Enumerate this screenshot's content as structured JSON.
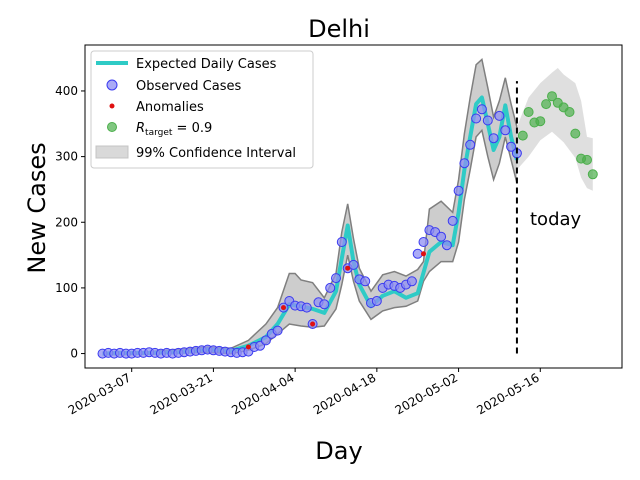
{
  "chart_data": {
    "type": "line",
    "title": "Delhi",
    "xlabel": "Day",
    "ylabel": "New Cases",
    "x_tick_labels": [
      "2020-03-07",
      "2020-03-21",
      "2020-04-04",
      "2020-04-18",
      "2020-05-02",
      "2020-05-16"
    ],
    "x_tick_dates": [
      "2020-03-07",
      "2020-03-21",
      "2020-04-04",
      "2020-04-18",
      "2020-05-02",
      "2020-05-16"
    ],
    "x_range": [
      "2020-02-28",
      "2020-05-30"
    ],
    "y_tick_labels": [
      "0",
      "100",
      "200",
      "300",
      "400"
    ],
    "y_ticks": [
      0,
      100,
      200,
      300,
      400
    ],
    "ylim": [
      -22,
      470
    ],
    "grid": false,
    "legend_position": "top-left",
    "today_marker": {
      "date": "2020-05-12",
      "label": "today",
      "ymin": 0,
      "ymax": 415
    },
    "legend": [
      {
        "key": "expected",
        "label": "Expected Daily Cases"
      },
      {
        "key": "observed",
        "label": "Observed Cases"
      },
      {
        "key": "anomalies",
        "label": "Anomalies"
      },
      {
        "key": "rtarget",
        "label_prefix": "R",
        "label_sub": "target",
        "label_suffix": " = 0.9"
      },
      {
        "key": "ci",
        "label": "99% Confidence Interval"
      }
    ],
    "colors": {
      "expected": "#2ecbc6",
      "observed_fill": "#8f8ff3",
      "observed_edge": "#3a3af0",
      "anomaly": "#e01010",
      "rtarget": "#4caf4c",
      "ci_fill": "#c4c4c4",
      "ci_edge": "#7f7f7f",
      "forecast_fill": "#d9d9d9"
    },
    "observed": {
      "dates": [
        "2020-03-02",
        "2020-03-03",
        "2020-03-04",
        "2020-03-05",
        "2020-03-06",
        "2020-03-07",
        "2020-03-08",
        "2020-03-09",
        "2020-03-10",
        "2020-03-11",
        "2020-03-12",
        "2020-03-13",
        "2020-03-14",
        "2020-03-15",
        "2020-03-16",
        "2020-03-17",
        "2020-03-18",
        "2020-03-19",
        "2020-03-20",
        "2020-03-21",
        "2020-03-22",
        "2020-03-23",
        "2020-03-24",
        "2020-03-25",
        "2020-03-26",
        "2020-03-27",
        "2020-03-28",
        "2020-03-29",
        "2020-03-30",
        "2020-03-31",
        "2020-04-01",
        "2020-04-02",
        "2020-04-03",
        "2020-04-04",
        "2020-04-05",
        "2020-04-06",
        "2020-04-07",
        "2020-04-08",
        "2020-04-09",
        "2020-04-10",
        "2020-04-11",
        "2020-04-12",
        "2020-04-13",
        "2020-04-14",
        "2020-04-15",
        "2020-04-16",
        "2020-04-17",
        "2020-04-18",
        "2020-04-19",
        "2020-04-20",
        "2020-04-21",
        "2020-04-22",
        "2020-04-23",
        "2020-04-24",
        "2020-04-25",
        "2020-04-26",
        "2020-04-27",
        "2020-04-28",
        "2020-04-29",
        "2020-04-30",
        "2020-05-01",
        "2020-05-02",
        "2020-05-03",
        "2020-05-04",
        "2020-05-05",
        "2020-05-06",
        "2020-05-07",
        "2020-05-08",
        "2020-05-09",
        "2020-05-10",
        "2020-05-11",
        "2020-05-12"
      ],
      "values": [
        0,
        1,
        0,
        1,
        0,
        0,
        1,
        1,
        2,
        1,
        0,
        1,
        0,
        1,
        2,
        3,
        4,
        5,
        6,
        5,
        4,
        3,
        2,
        1,
        2,
        3,
        10,
        12,
        20,
        30,
        35,
        70,
        80,
        73,
        72,
        70,
        45,
        78,
        75,
        100,
        115,
        170,
        130,
        135,
        113,
        110,
        77,
        80,
        100,
        105,
        103,
        100,
        105,
        110,
        152,
        170,
        188,
        185,
        178,
        165,
        202,
        248,
        290,
        318,
        358,
        372,
        355,
        328,
        362,
        340,
        315,
        305
      ]
    },
    "anomalies": {
      "dates": [
        "2020-03-27",
        "2020-04-02",
        "2020-04-07",
        "2020-04-13",
        "2020-04-26"
      ],
      "values": [
        10,
        70,
        45,
        130,
        152
      ]
    },
    "expected": {
      "dates": [
        "2020-03-02",
        "2020-03-05",
        "2020-03-10",
        "2020-03-15",
        "2020-03-20",
        "2020-03-24",
        "2020-03-27",
        "2020-03-30",
        "2020-04-01",
        "2020-04-03",
        "2020-04-05",
        "2020-04-07",
        "2020-04-09",
        "2020-04-11",
        "2020-04-12",
        "2020-04-13",
        "2020-04-14",
        "2020-04-15",
        "2020-04-17",
        "2020-04-19",
        "2020-04-21",
        "2020-04-23",
        "2020-04-25",
        "2020-04-27",
        "2020-04-29",
        "2020-05-01",
        "2020-05-02",
        "2020-05-03",
        "2020-05-04",
        "2020-05-05",
        "2020-05-06",
        "2020-05-07",
        "2020-05-08",
        "2020-05-09",
        "2020-05-10",
        "2020-05-11",
        "2020-05-12"
      ],
      "values": [
        0,
        1,
        1,
        2,
        6,
        4,
        12,
        25,
        45,
        75,
        72,
        68,
        62,
        95,
        145,
        195,
        140,
        105,
        72,
        88,
        95,
        85,
        92,
        155,
        170,
        165,
        215,
        280,
        330,
        380,
        390,
        350,
        310,
        330,
        378,
        330,
        295
      ]
    },
    "ci_upper": {
      "dates": [
        "2020-03-02",
        "2020-03-10",
        "2020-03-20",
        "2020-03-24",
        "2020-03-27",
        "2020-03-30",
        "2020-04-01",
        "2020-04-03",
        "2020-04-04",
        "2020-04-05",
        "2020-04-07",
        "2020-04-09",
        "2020-04-11",
        "2020-04-12",
        "2020-04-13",
        "2020-04-14",
        "2020-04-15",
        "2020-04-17",
        "2020-04-19",
        "2020-04-21",
        "2020-04-23",
        "2020-04-25",
        "2020-04-26",
        "2020-04-27",
        "2020-04-29",
        "2020-05-01",
        "2020-05-02",
        "2020-05-03",
        "2020-05-04",
        "2020-05-05",
        "2020-05-06",
        "2020-05-07",
        "2020-05-08",
        "2020-05-09",
        "2020-05-10",
        "2020-05-11",
        "2020-05-12"
      ],
      "values": [
        2,
        3,
        10,
        8,
        20,
        45,
        70,
        122,
        122,
        112,
        108,
        85,
        122,
        185,
        228,
        175,
        130,
        95,
        120,
        125,
        118,
        128,
        140,
        220,
        232,
        215,
        265,
        335,
        390,
        440,
        448,
        405,
        360,
        385,
        420,
        380,
        345
      ]
    },
    "ci_lower": {
      "dates": [
        "2020-03-02",
        "2020-03-10",
        "2020-03-20",
        "2020-03-24",
        "2020-03-27",
        "2020-03-30",
        "2020-04-01",
        "2020-04-03",
        "2020-04-05",
        "2020-04-07",
        "2020-04-09",
        "2020-04-11",
        "2020-04-12",
        "2020-04-13",
        "2020-04-14",
        "2020-04-15",
        "2020-04-17",
        "2020-04-19",
        "2020-04-21",
        "2020-04-23",
        "2020-04-25",
        "2020-04-26",
        "2020-04-27",
        "2020-04-29",
        "2020-05-01",
        "2020-05-02",
        "2020-05-03",
        "2020-05-04",
        "2020-05-05",
        "2020-05-06",
        "2020-05-07",
        "2020-05-08",
        "2020-05-09",
        "2020-05-10",
        "2020-05-11",
        "2020-05-12"
      ],
      "values": [
        -2,
        -1,
        2,
        0,
        5,
        15,
        30,
        45,
        42,
        40,
        42,
        68,
        105,
        150,
        110,
        80,
        52,
        65,
        70,
        72,
        80,
        110,
        125,
        140,
        140,
        170,
        235,
        280,
        330,
        340,
        300,
        265,
        290,
        330,
        295,
        260
      ]
    },
    "rtarget": {
      "dates": [
        "2020-05-13",
        "2020-05-14",
        "2020-05-15",
        "2020-05-16",
        "2020-05-17",
        "2020-05-18",
        "2020-05-19",
        "2020-05-20",
        "2020-05-21",
        "2020-05-22",
        "2020-05-23",
        "2020-05-24",
        "2020-05-25"
      ],
      "values": [
        332,
        368,
        352,
        354,
        380,
        392,
        382,
        375,
        368,
        335,
        297,
        295,
        273
      ]
    },
    "forecast_upper": {
      "dates": [
        "2020-05-12",
        "2020-05-14",
        "2020-05-16",
        "2020-05-18",
        "2020-05-19",
        "2020-05-20",
        "2020-05-22",
        "2020-05-23",
        "2020-05-24",
        "2020-05-25"
      ],
      "values": [
        345,
        390,
        412,
        428,
        435,
        425,
        412,
        385,
        330,
        328
      ]
    },
    "forecast_lower": {
      "dates": [
        "2020-05-12",
        "2020-05-14",
        "2020-05-16",
        "2020-05-18",
        "2020-05-20",
        "2020-05-22",
        "2020-05-23",
        "2020-05-24",
        "2020-05-25"
      ],
      "values": [
        280,
        300,
        325,
        338,
        322,
        298,
        268,
        252,
        248
      ]
    }
  }
}
